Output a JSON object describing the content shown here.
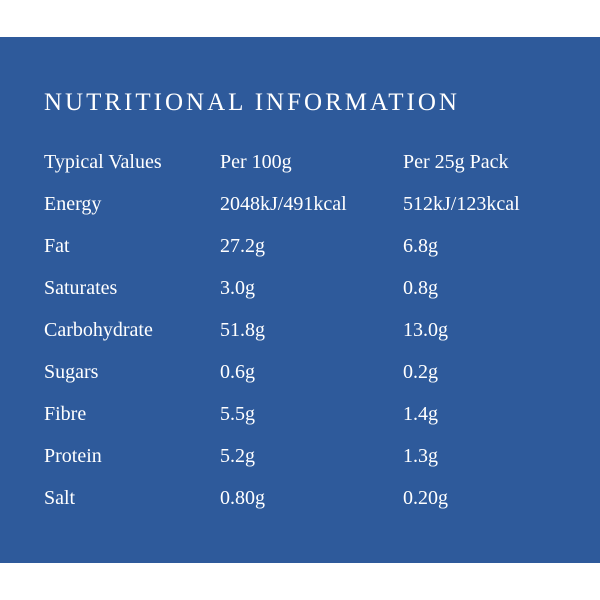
{
  "title": "NUTRITIONAL INFORMATION",
  "table": {
    "header": [
      "Typical Values",
      "Per 100g",
      "Per 25g Pack"
    ],
    "rows": [
      [
        "Energy",
        "2048kJ/491kcal",
        "512kJ/123kcal"
      ],
      [
        "Fat",
        "27.2g",
        "6.8g"
      ],
      [
        "Saturates",
        "3.0g",
        "0.8g"
      ],
      [
        "Carbohydrate",
        "51.8g",
        "13.0g"
      ],
      [
        "Sugars",
        "0.6g",
        "0.2g"
      ],
      [
        "Fibre",
        "5.5g",
        "1.4g"
      ],
      [
        "Protein",
        "5.2g",
        "1.3g"
      ],
      [
        "Salt",
        "0.80g",
        "0.20g"
      ]
    ]
  }
}
